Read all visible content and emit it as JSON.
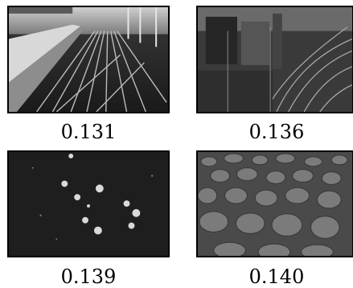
{
  "grid": {
    "panels": [
      {
        "caption": "0.131",
        "scene": "railway-platform-tracks"
      },
      {
        "caption": "0.136",
        "scene": "railway-yard-buildings"
      },
      {
        "caption": "0.139",
        "scene": "white-flowers-dark-grass"
      },
      {
        "caption": "0.140",
        "scene": "circular-stepping-stones"
      }
    ]
  }
}
